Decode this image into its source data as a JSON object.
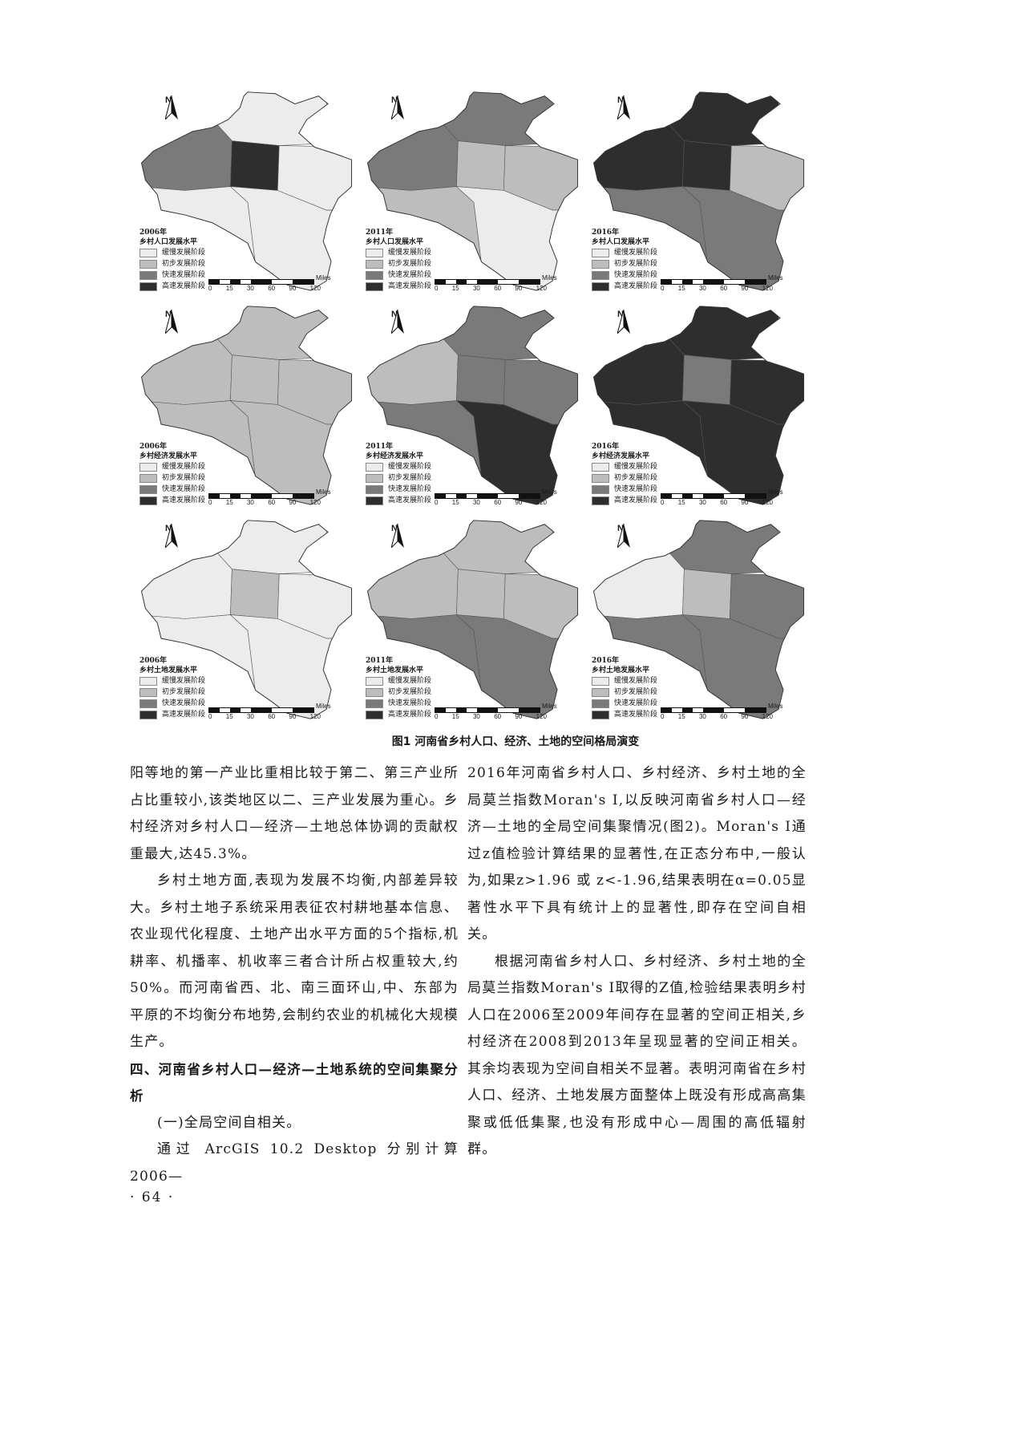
{
  "figure": {
    "caption": "图1  河南省乡村人口、经济、土地的空间格局演变",
    "legend_labels": [
      "缓慢发展阶段",
      "初步发展阶段",
      "快速发展阶段",
      "高速发展阶段"
    ],
    "stage_colors": [
      "#ececec",
      "#bdbdbd",
      "#7a7a7a",
      "#2e2e2e"
    ],
    "north_label": "N",
    "scale_ticks": [
      "0",
      "15",
      "30",
      "60",
      "90",
      "120"
    ],
    "scale_unit": "Miles",
    "maps": [
      {
        "year": "2006年",
        "title": "乡村人口发展水平"
      },
      {
        "year": "2011年",
        "title": "乡村人口发展水平"
      },
      {
        "year": "2016年",
        "title": "乡村人口发展水平"
      },
      {
        "year": "2006年",
        "title": "乡村经济发展水平"
      },
      {
        "year": "2011年",
        "title": "乡村经济发展水平"
      },
      {
        "year": "2016年",
        "title": "乡村经济发展水平"
      },
      {
        "year": "2006年",
        "title": "乡村土地发展水平"
      },
      {
        "year": "2011年",
        "title": "乡村土地发展水平"
      },
      {
        "year": "2016年",
        "title": "乡村土地发展水平"
      }
    ]
  },
  "left_column": [
    {
      "text": "阳等地的第一产业比重相比较于第二、第三产业所占比重较小,该类地区以二、三产业发展为重心。乡村经济对乡村人口—经济—土地总体协调的贡献权重最大,达45.3%。",
      "style": "plain"
    },
    {
      "text": "乡村土地方面,表现为发展不均衡,内部差异较大。乡村土地子系统采用表征农村耕地基本信息、农业现代化程度、土地产出水平方面的5个指标,机耕率、机播率、机收率三者合计所占权重较大,约50%。而河南省西、北、南三面环山,中、东部为平原的不均衡分布地势,会制约农业的机械化大规模生产。",
      "style": "indent"
    },
    {
      "text": "四、河南省乡村人口—经济—土地系统的空间集聚分析",
      "style": "heading"
    },
    {
      "text": "(一)全局空间自相关。",
      "style": "indent"
    },
    {
      "text": "通过 ArcGIS 10.2 Desktop 分别计算 2006—",
      "style": "indent"
    }
  ],
  "right_column": [
    {
      "text": "2016年河南省乡村人口、乡村经济、乡村土地的全局莫兰指数Moran's I,以反映河南省乡村人口—经济—土地的全局空间集聚情况(图2)。Moran's I通过z值检验计算结果的显著性,在正态分布中,一般认为,如果z>1.96 或 z<-1.96,结果表明在α=0.05显著性水平下具有统计上的显著性,即存在空间自相关。",
      "style": "plain"
    },
    {
      "text": "根据河南省乡村人口、乡村经济、乡村土地的全局莫兰指数Moran's I取得的Z值,检验结果表明乡村人口在2006至2009年间存在显著的空间正相关,乡村经济在2008到2013年呈现显著的空间正相关。其余均表现为空间自相关不显著。表明河南省在乡村人口、经济、土地发展方面整体上既没有形成高高集聚或低低集聚,也没有形成中心—周围的高低辐射群。",
      "style": "indent"
    }
  ],
  "page_number": "· 64 ·"
}
